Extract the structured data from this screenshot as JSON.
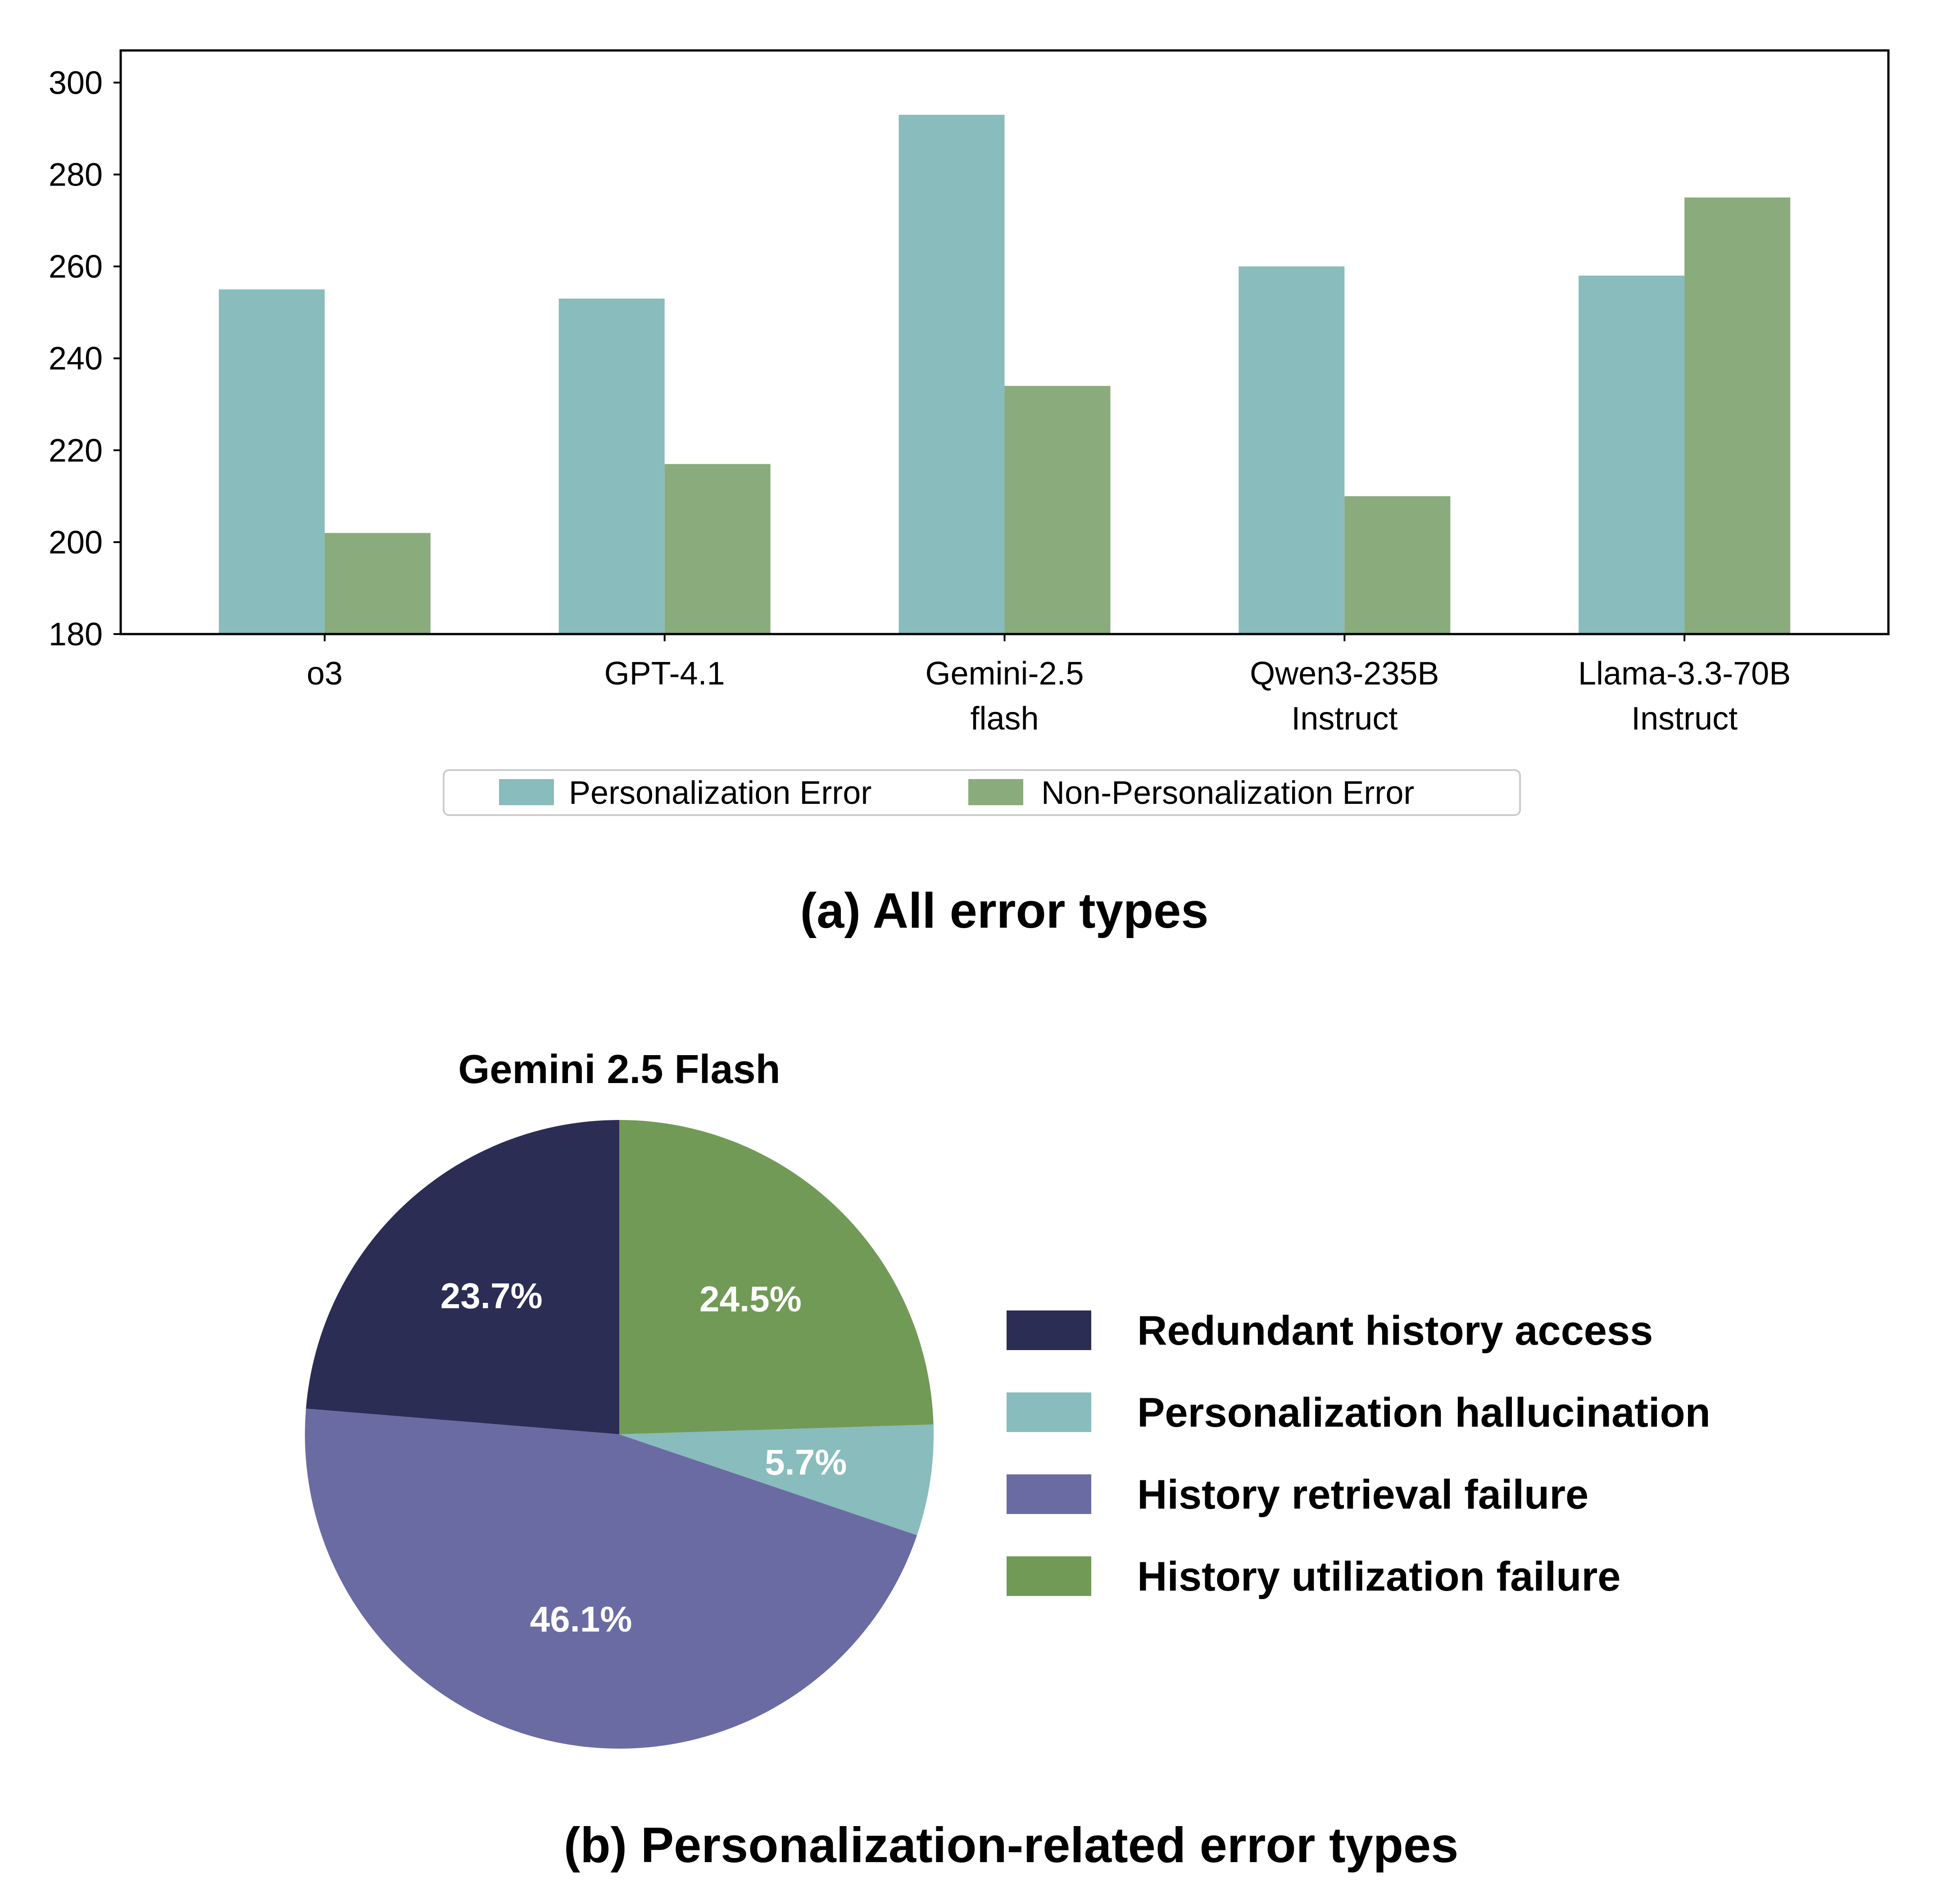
{
  "chart_data": [
    {
      "type": "bar",
      "caption": "(a) All error types",
      "categories": [
        [
          "o3"
        ],
        [
          "GPT-4.1"
        ],
        [
          "Gemini-2.5",
          "flash"
        ],
        [
          "Qwen3-235B",
          "Instruct"
        ],
        [
          "Llama-3.3-70B",
          "Instruct"
        ]
      ],
      "series": [
        {
          "name": "Personalization Error",
          "color": "#89bcbc",
          "values": [
            255,
            253,
            293,
            260,
            258
          ]
        },
        {
          "name": "Non-Personalization Error",
          "color": "#8aab7b",
          "values": [
            202,
            217,
            234,
            210,
            275
          ]
        }
      ],
      "ylim": [
        180,
        307
      ],
      "yticks": [
        180,
        200,
        220,
        240,
        260,
        280,
        300
      ],
      "legend_placement": "bottom-center",
      "grid": false
    },
    {
      "type": "pie",
      "title": "Gemini 2.5 Flash",
      "caption": "(b) Personalization-related error types",
      "start_angle_deg": 90,
      "direction": "counterclockwise",
      "slices": [
        {
          "label": "Redundant history access",
          "value": 23.7,
          "value_label": "23.7%",
          "color": "#2c2d54"
        },
        {
          "label": "History retrieval failure",
          "value": 46.1,
          "value_label": "46.1%",
          "color": "#6b6ba3"
        },
        {
          "label": "Personalization hallucination",
          "value": 5.7,
          "value_label": "5.7%",
          "color": "#89bcbc"
        },
        {
          "label": "History utilization failure",
          "value": 24.5,
          "value_label": "24.5%",
          "color": "#719a56"
        }
      ],
      "legend_order": [
        "Redundant history access",
        "Personalization hallucination",
        "History retrieval failure",
        "History utilization failure"
      ],
      "legend_placement": "right"
    }
  ]
}
